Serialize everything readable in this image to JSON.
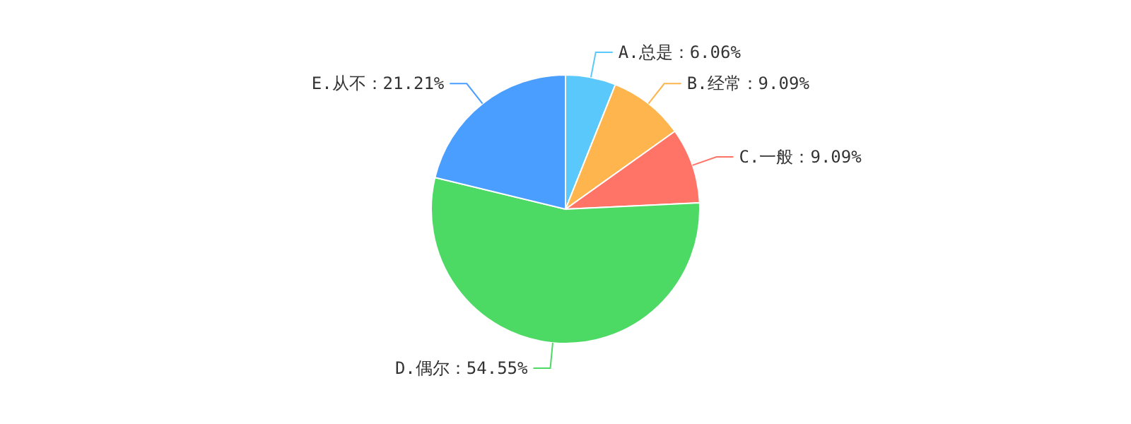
{
  "chart_data": {
    "type": "pie",
    "categories": [
      "A.总是",
      "B.经常",
      "C.一般",
      "D.偶尔",
      "E.从不"
    ],
    "values": [
      6.06,
      9.09,
      9.09,
      54.55,
      21.21
    ],
    "value_labels": [
      "6.06%",
      "9.09%",
      "9.09%",
      "54.55%",
      "21.21%"
    ],
    "colors": [
      "#5ac8fa",
      "#ffb54d",
      "#ff7466",
      "#4cd964",
      "#4a9eff"
    ]
  }
}
